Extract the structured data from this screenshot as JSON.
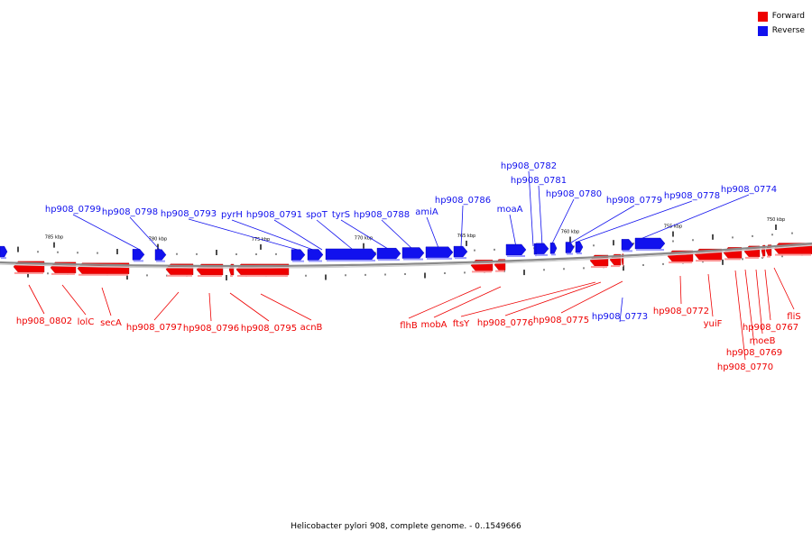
{
  "colors": {
    "forward": "#ee0000",
    "reverse": "#1111ee",
    "backbone": "#8a8a8a",
    "tick": "#000000"
  },
  "legend": {
    "forward_label": "Forward",
    "reverse_label": "Reverse"
  },
  "caption": "Helicobacter pylori 908, complete genome. - 0..1549666",
  "scale_labels": [
    "785 kbp",
    "780 kbp",
    "775 kbp",
    "770 kbp",
    "765 kbp",
    "760 kbp",
    "755 kbp",
    "750 kbp"
  ],
  "reverse_genes": [
    "hp908_0799",
    "hp908_0798",
    "hp908_0793",
    "pyrH",
    "hp908_0791",
    "spoT",
    "tyrS",
    "hp908_0788",
    "amiA",
    "hp908_0786",
    "moaA",
    "hp908_0782",
    "hp908_0781",
    "hp908_0780",
    "hp908_0779",
    "hp908_0778",
    "hp908_0774",
    "hp908_0773"
  ],
  "forward_genes": [
    "hp908_0802",
    "lolC",
    "secA",
    "hp908_0797",
    "hp908_0796",
    "hp908_0795",
    "acnB",
    "flhB",
    "mobA",
    "ftsY",
    "hp908_0776",
    "hp908_0775",
    "hp908_0772",
    "yuiF",
    "hp908_0767",
    "moeB",
    "hp908_0769",
    "hp908_0770",
    "fliS"
  ]
}
